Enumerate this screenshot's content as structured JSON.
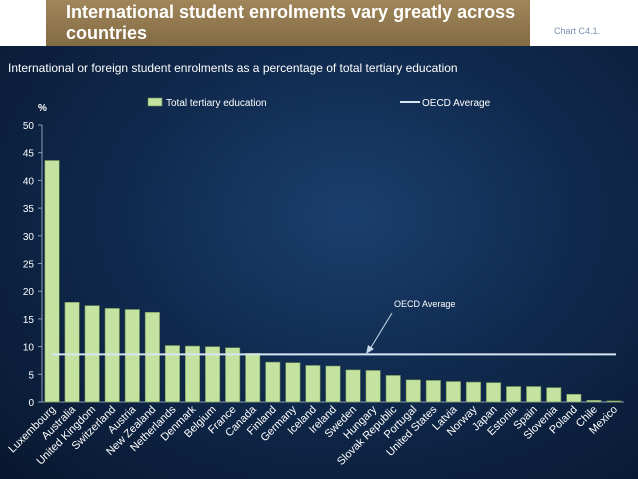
{
  "header": {
    "title": "International student enrolments vary greatly across countries",
    "chart_ref": "Chart C4.1."
  },
  "subtitle": "International or foreign student enrolments as a percentage of total tertiary education",
  "colors": {
    "bar": "#c4e3a0",
    "bar_stroke": "#6a8a52",
    "oecd_line": "#d8e6f4",
    "arrow": "#c9d8ea",
    "text": "#ffffff"
  },
  "chart_data": {
    "type": "bar",
    "ylabel": "%",
    "ylim": [
      0,
      50
    ],
    "yticks": [
      0,
      5,
      10,
      15,
      20,
      25,
      30,
      35,
      40,
      45,
      50
    ],
    "grid": false,
    "legend": {
      "position": "top",
      "entries": [
        "Total tertiary education",
        "OECD Average"
      ]
    },
    "categories": [
      "Luxembourg",
      "Australia",
      "United Kingdom",
      "Switzerland",
      "Austria",
      "New Zealand",
      "Netherlands",
      "Denmark",
      "Belgium",
      "France",
      "Canada",
      "Finland",
      "Germany",
      "Iceland",
      "Ireland",
      "Sweden",
      "Hungary",
      "Slovak Republic",
      "Portugal",
      "United States",
      "Latvia",
      "Norway",
      "Japan",
      "Estonia",
      "Spain",
      "Slovenia",
      "Poland",
      "Chile",
      "Mexico"
    ],
    "series": [
      {
        "name": "Total tertiary education",
        "values": [
          43.6,
          18.0,
          17.4,
          16.9,
          16.7,
          16.2,
          10.2,
          10.1,
          10.0,
          9.8,
          8.8,
          7.2,
          7.1,
          6.6,
          6.5,
          5.8,
          5.7,
          4.8,
          4.0,
          3.9,
          3.7,
          3.6,
          3.5,
          2.8,
          2.8,
          2.6,
          1.4,
          0.3,
          0.2
        ]
      }
    ],
    "reference_line": {
      "name": "OECD Average",
      "value": 8.6,
      "annotation": "OECD Average"
    }
  }
}
